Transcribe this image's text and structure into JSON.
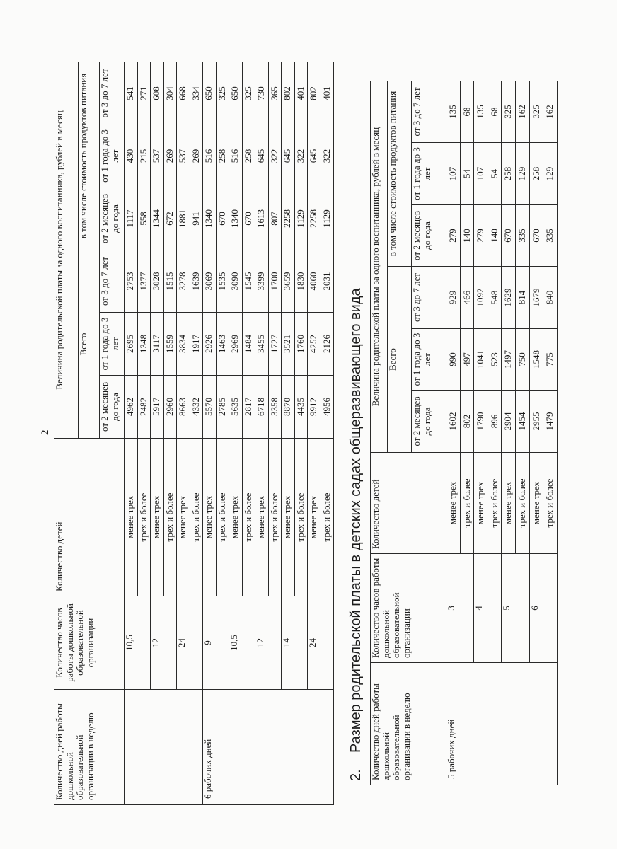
{
  "page_number": "2",
  "headers": {
    "days": "Количество дней работы дошкольной образовательной организации в неделю",
    "hours": "Количество часов работы дошкольной образовательной организации",
    "children": "Количество детей",
    "fee_title": "Величина родительской платы за одного воспитанника, рублей в месяц",
    "total": "Всего",
    "food": "в том числе стоимость продуктов питания",
    "age_cols": [
      "от 2 месяцев до года",
      "от 1 года до 3 лет",
      "от 3 до 7 лет"
    ]
  },
  "table1": {
    "groups": [
      {
        "days": "",
        "hours_groups": [
          {
            "hours": "10,5",
            "rows": [
              {
                "children": "менее трех",
                "values": [
                  "4962",
                  "2695",
                  "2753",
                  "1117",
                  "430",
                  "541"
                ]
              },
              {
                "children": "трех и более",
                "values": [
                  "2482",
                  "1348",
                  "1377",
                  "558",
                  "215",
                  "271"
                ]
              }
            ]
          },
          {
            "hours": "12",
            "rows": [
              {
                "children": "менее трех",
                "values": [
                  "5917",
                  "3117",
                  "3028",
                  "1344",
                  "537",
                  "608"
                ]
              },
              {
                "children": "трех и более",
                "values": [
                  "2960",
                  "1559",
                  "1515",
                  "672",
                  "269",
                  "304"
                ]
              }
            ]
          },
          {
            "hours": "24",
            "rows": [
              {
                "children": "менее трех",
                "values": [
                  "8663",
                  "3834",
                  "3278",
                  "1881",
                  "537",
                  "668"
                ]
              },
              {
                "children": "трех и более",
                "values": [
                  "4332",
                  "1917",
                  "1639",
                  "941",
                  "269",
                  "334"
                ]
              }
            ]
          }
        ]
      },
      {
        "days": "6 рабочих дней",
        "hours_groups": [
          {
            "hours": "9",
            "rows": [
              {
                "children": "менее трех",
                "values": [
                  "5570",
                  "2926",
                  "3069",
                  "1340",
                  "516",
                  "650"
                ]
              },
              {
                "children": "трех и более",
                "values": [
                  "2785",
                  "1463",
                  "1535",
                  "670",
                  "258",
                  "325"
                ]
              }
            ]
          },
          {
            "hours": "10,5",
            "rows": [
              {
                "children": "менее трех",
                "values": [
                  "5635",
                  "2969",
                  "3090",
                  "1340",
                  "516",
                  "650"
                ]
              },
              {
                "children": "трех и более",
                "values": [
                  "2817",
                  "1484",
                  "1545",
                  "670",
                  "258",
                  "325"
                ]
              }
            ]
          },
          {
            "hours": "12",
            "rows": [
              {
                "children": "менее трех",
                "values": [
                  "6718",
                  "3455",
                  "3399",
                  "1613",
                  "645",
                  "730"
                ]
              },
              {
                "children": "трех и более",
                "values": [
                  "3358",
                  "1727",
                  "1700",
                  "807",
                  "322",
                  "365"
                ]
              }
            ]
          },
          {
            "hours": "14",
            "rows": [
              {
                "children": "менее трех",
                "values": [
                  "8870",
                  "3521",
                  "3659",
                  "2258",
                  "645",
                  "802"
                ]
              },
              {
                "children": "трех и более",
                "values": [
                  "4435",
                  "1760",
                  "1830",
                  "1129",
                  "322",
                  "401"
                ]
              }
            ]
          },
          {
            "hours": "24",
            "rows": [
              {
                "children": "менее трех",
                "values": [
                  "9912",
                  "4252",
                  "4060",
                  "2258",
                  "645",
                  "802"
                ]
              },
              {
                "children": "трех и более",
                "values": [
                  "4956",
                  "2126",
                  "2031",
                  "1129",
                  "322",
                  "401"
                ]
              }
            ]
          }
        ]
      }
    ]
  },
  "section2": {
    "number": "2.",
    "title": "Размер родительской платы в детских садах общеразвивающего вида"
  },
  "table2": {
    "groups": [
      {
        "days": "5 рабочих дней",
        "hours_groups": [
          {
            "hours": "3",
            "rows": [
              {
                "children": "менее трех",
                "values": [
                  "1602",
                  "990",
                  "929",
                  "279",
                  "107",
                  "135"
                ]
              },
              {
                "children": "трех и более",
                "values": [
                  "802",
                  "497",
                  "466",
                  "140",
                  "54",
                  "68"
                ]
              }
            ]
          },
          {
            "hours": "4",
            "rows": [
              {
                "children": "менее трех",
                "values": [
                  "1790",
                  "1041",
                  "1092",
                  "279",
                  "107",
                  "135"
                ]
              },
              {
                "children": "трех и более",
                "values": [
                  "896",
                  "523",
                  "548",
                  "140",
                  "54",
                  "68"
                ]
              }
            ]
          },
          {
            "hours": "5",
            "rows": [
              {
                "children": "менее трех",
                "values": [
                  "2904",
                  "1497",
                  "1629",
                  "670",
                  "258",
                  "325"
                ]
              },
              {
                "children": "трех и более",
                "values": [
                  "1454",
                  "750",
                  "814",
                  "335",
                  "129",
                  "162"
                ]
              }
            ]
          },
          {
            "hours": "6",
            "rows": [
              {
                "children": "менее трех",
                "values": [
                  "2955",
                  "1548",
                  "1679",
                  "670",
                  "258",
                  "325"
                ]
              },
              {
                "children": "трех и более",
                "values": [
                  "1479",
                  "775",
                  "840",
                  "335",
                  "129",
                  "162"
                ]
              }
            ]
          }
        ]
      }
    ]
  }
}
